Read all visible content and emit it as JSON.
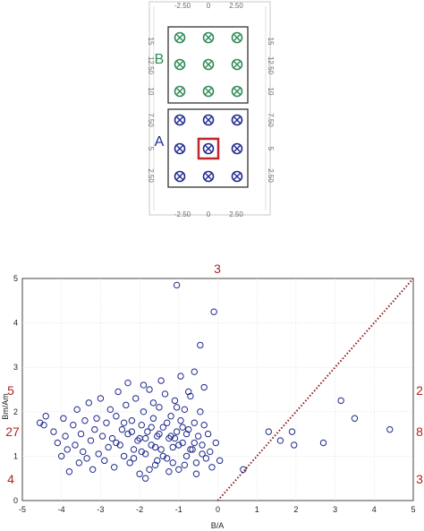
{
  "diagram": {
    "ticks_top": [
      "-2.50",
      "0",
      "2.50"
    ],
    "ticks_bottom": [
      "-2.50",
      "0",
      "2.50"
    ],
    "ticks_left": [
      "15",
      "12.50",
      "10",
      "7.50",
      "5",
      "2.50"
    ],
    "ticks_right": [
      "15",
      "12.50",
      "10",
      "7.50",
      "5",
      "2.50"
    ],
    "group_b_label": "B",
    "group_a_label": "A",
    "colors": {
      "group_b": "#2e8b57",
      "group_a": "#1f2a8c",
      "highlight": "#c0262c"
    }
  },
  "chart_data": {
    "type": "scatter",
    "title": "",
    "xlabel": "B/A",
    "ylabel": "Bm/Am",
    "xlim": [
      -5,
      5
    ],
    "ylim": [
      0,
      5
    ],
    "xticks": [
      "-5",
      "-4",
      "-3",
      "-2",
      "-1",
      "0",
      "1",
      "2",
      "3",
      "4",
      "5"
    ],
    "yticks": [
      "0",
      "1",
      "2",
      "3",
      "4",
      "5"
    ],
    "grid": true,
    "marker": "open-circle",
    "marker_color": "#1f2a8c",
    "reference_line": {
      "style": "dotted",
      "color": "#8b1a1a",
      "from": [
        0,
        0
      ],
      "to": [
        5,
        5
      ]
    },
    "region_counts": {
      "color": "#b22222",
      "top": "3",
      "left": [
        "5",
        "27",
        "4"
      ],
      "right": [
        "2",
        "8",
        "3"
      ]
    },
    "series": [
      {
        "points": [
          [
            -1.05,
            4.85
          ],
          [
            -0.1,
            4.25
          ],
          [
            -0.45,
            3.5
          ],
          [
            -4.55,
            1.75
          ],
          [
            -4.4,
            1.9
          ],
          [
            -4.45,
            1.7
          ],
          [
            -4.2,
            1.55
          ],
          [
            -4.1,
            1.3
          ],
          [
            -4.0,
            1.0
          ],
          [
            -3.95,
            1.85
          ],
          [
            -3.9,
            1.45
          ],
          [
            -3.85,
            1.15
          ],
          [
            -3.8,
            0.65
          ],
          [
            -3.7,
            1.7
          ],
          [
            -3.65,
            1.25
          ],
          [
            -3.6,
            2.05
          ],
          [
            -3.55,
            0.85
          ],
          [
            -3.5,
            1.5
          ],
          [
            -3.45,
            1.1
          ],
          [
            -3.4,
            1.8
          ],
          [
            -3.35,
            0.95
          ],
          [
            -3.3,
            2.2
          ],
          [
            -3.25,
            1.35
          ],
          [
            -3.2,
            0.7
          ],
          [
            -3.15,
            1.6
          ],
          [
            -3.1,
            1.85
          ],
          [
            -3.05,
            1.05
          ],
          [
            -3.0,
            2.3
          ],
          [
            -2.95,
            1.45
          ],
          [
            -2.9,
            0.9
          ],
          [
            -2.85,
            1.75
          ],
          [
            -2.8,
            1.2
          ],
          [
            -2.75,
            2.05
          ],
          [
            -2.7,
            1.4
          ],
          [
            -2.65,
            0.75
          ],
          [
            -2.6,
            1.9
          ],
          [
            -2.55,
            2.45
          ],
          [
            -2.5,
            1.25
          ],
          [
            -2.45,
            1.6
          ],
          [
            -2.4,
            1.0
          ],
          [
            -2.35,
            2.15
          ],
          [
            -2.3,
            1.5
          ],
          [
            -2.25,
            0.85
          ],
          [
            -2.2,
            1.8
          ],
          [
            -2.15,
            1.15
          ],
          [
            -2.1,
            2.3
          ],
          [
            -2.05,
            1.35
          ],
          [
            -2.0,
            0.6
          ],
          [
            -1.95,
            1.7
          ],
          [
            -1.9,
            2.0
          ],
          [
            -1.85,
            1.05
          ],
          [
            -1.8,
            1.55
          ],
          [
            -1.75,
            2.5
          ],
          [
            -1.7,
            1.25
          ],
          [
            -1.65,
            1.85
          ],
          [
            -1.6,
            0.8
          ],
          [
            -1.55,
            1.45
          ],
          [
            -1.5,
            2.1
          ],
          [
            -1.45,
            1.15
          ],
          [
            -1.4,
            1.65
          ],
          [
            -1.35,
            2.4
          ],
          [
            -1.3,
            0.95
          ],
          [
            -1.25,
            1.4
          ],
          [
            -1.2,
            1.9
          ],
          [
            -1.15,
            1.2
          ],
          [
            -1.1,
            2.25
          ],
          [
            -1.05,
            1.55
          ],
          [
            -1.0,
            0.7
          ],
          [
            -0.95,
            1.8
          ],
          [
            -0.9,
            1.3
          ],
          [
            -0.85,
            2.05
          ],
          [
            -0.8,
            1.0
          ],
          [
            -0.75,
            1.6
          ],
          [
            -0.7,
            2.35
          ],
          [
            -0.65,
            1.15
          ],
          [
            -0.6,
            1.75
          ],
          [
            -0.55,
            0.85
          ],
          [
            -0.5,
            1.45
          ],
          [
            -0.45,
            2.0
          ],
          [
            -0.4,
            1.25
          ],
          [
            -0.35,
            1.7
          ],
          [
            -0.3,
            0.95
          ],
          [
            -0.25,
            1.5
          ],
          [
            -0.2,
            1.1
          ],
          [
            -0.15,
            0.75
          ],
          [
            -0.05,
            1.3
          ],
          [
            0.05,
            0.9
          ],
          [
            -2.6,
            1.3
          ],
          [
            -2.2,
            1.55
          ],
          [
            -1.85,
            1.4
          ],
          [
            -1.6,
            1.2
          ],
          [
            -1.4,
            1.0
          ],
          [
            -1.2,
            1.45
          ],
          [
            -1.0,
            1.25
          ],
          [
            -0.8,
            1.5
          ],
          [
            -0.6,
            1.3
          ],
          [
            -0.4,
            1.05
          ],
          [
            -1.7,
            1.65
          ],
          [
            -1.3,
            1.75
          ],
          [
            -0.9,
            1.65
          ],
          [
            -2.4,
            1.75
          ],
          [
            -2.0,
            1.4
          ],
          [
            -1.5,
            1.5
          ],
          [
            -1.1,
            1.4
          ],
          [
            -0.7,
            1.15
          ],
          [
            -1.95,
            1.1
          ],
          [
            -1.55,
            0.9
          ],
          [
            -1.15,
            0.85
          ],
          [
            -0.85,
            0.8
          ],
          [
            -2.15,
            0.95
          ],
          [
            -1.75,
            0.7
          ],
          [
            -1.25,
            0.65
          ],
          [
            -0.55,
            0.6
          ],
          [
            -1.65,
            2.2
          ],
          [
            -1.05,
            2.1
          ],
          [
            -0.75,
            2.45
          ],
          [
            -1.9,
            2.6
          ],
          [
            -0.95,
            2.8
          ],
          [
            -0.35,
            2.55
          ],
          [
            -2.3,
            2.65
          ],
          [
            -1.45,
            2.7
          ],
          [
            -0.6,
            2.9
          ],
          [
            -1.85,
            0.5
          ],
          [
            0.65,
            0.7
          ],
          [
            1.3,
            1.55
          ],
          [
            1.6,
            1.35
          ],
          [
            1.9,
            1.55
          ],
          [
            1.95,
            1.25
          ],
          [
            2.7,
            1.3
          ],
          [
            3.15,
            2.25
          ],
          [
            3.5,
            1.85
          ],
          [
            4.4,
            1.6
          ]
        ]
      }
    ]
  }
}
